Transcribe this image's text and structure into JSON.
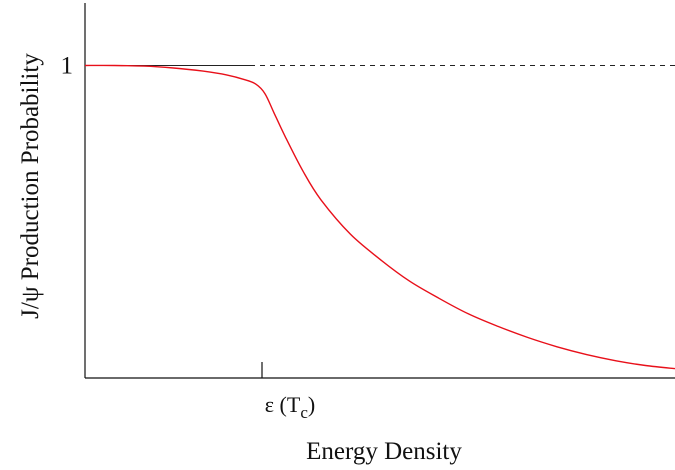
{
  "chart_data": {
    "type": "line",
    "title": "",
    "xlabel": "Energy Density",
    "ylabel": "J/ψ Production Probability",
    "ylim": [
      0,
      1.2
    ],
    "xlim": [
      0,
      10
    ],
    "grid": false,
    "y_ticks": [
      {
        "value": 1,
        "label": "1"
      }
    ],
    "x_ticks": [
      {
        "value": 3.0,
        "label": "ε (T",
        "subscript": "c",
        "suffix": ")"
      }
    ],
    "reference_line": {
      "y": 1,
      "x_from": 0,
      "x_to": 10,
      "style": "dashed"
    },
    "series": [
      {
        "color": "#e8101a",
        "points": [
          [
            0,
            1.0
          ],
          [
            0.5,
            1.0
          ],
          [
            1.0,
            0.998
          ],
          [
            1.5,
            0.992
          ],
          [
            2.0,
            0.982
          ],
          [
            2.4,
            0.97
          ],
          [
            2.7,
            0.955
          ],
          [
            2.9,
            0.94
          ],
          [
            3.05,
            0.91
          ],
          [
            3.2,
            0.85
          ],
          [
            3.4,
            0.77
          ],
          [
            3.7,
            0.66
          ],
          [
            4.0,
            0.57
          ],
          [
            4.5,
            0.46
          ],
          [
            5.0,
            0.38
          ],
          [
            5.5,
            0.31
          ],
          [
            6.0,
            0.255
          ],
          [
            6.5,
            0.205
          ],
          [
            7.0,
            0.165
          ],
          [
            7.5,
            0.13
          ],
          [
            8.0,
            0.1
          ],
          [
            8.5,
            0.075
          ],
          [
            9.0,
            0.055
          ],
          [
            9.5,
            0.04
          ],
          [
            10.0,
            0.03
          ]
        ]
      }
    ],
    "colors": {
      "axis": "#111111",
      "curve": "#e8101a",
      "reference": "#222222"
    }
  }
}
